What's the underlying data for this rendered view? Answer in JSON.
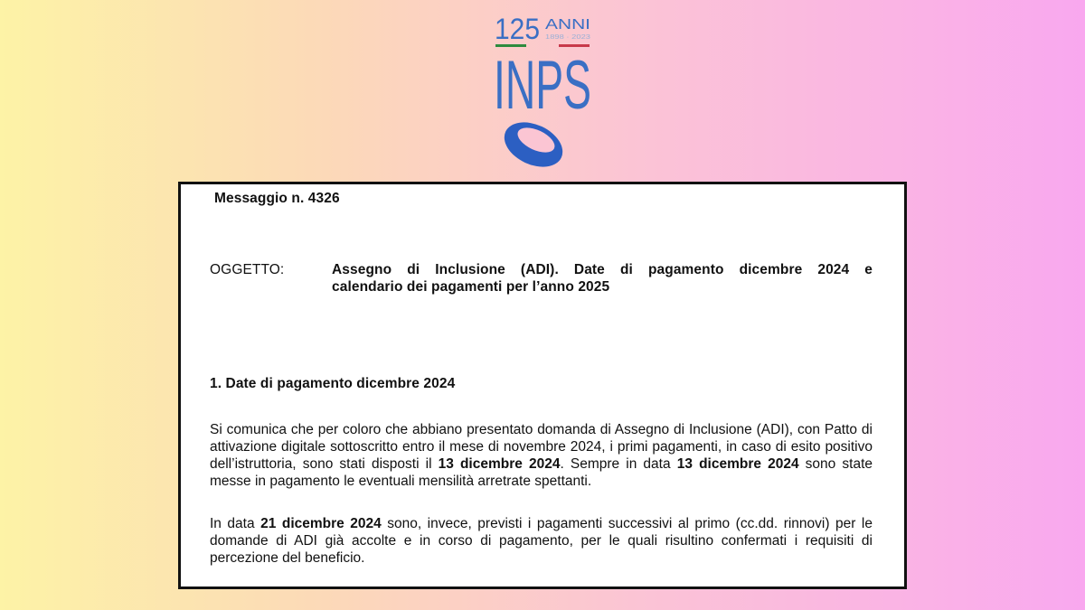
{
  "logo": {
    "number": "125",
    "anni": "ANNI",
    "years": "1898 · 2023",
    "brand": "INPS",
    "brand_color": "#3a6fc4"
  },
  "document": {
    "message": "Messaggio n. 4326",
    "subject_label": "OGGETTO:",
    "subject_line1": "Assegno di Inclusione (ADI). Date di pagamento dicembre 2024 e",
    "subject_line2": "calendario dei pagamenti per l’anno 2025",
    "section_title": "1. Date di pagamento dicembre 2024",
    "paragraph1": [
      {
        "text": "Si comunica che per coloro che abbiano presentato domanda di Assegno di Inclusione (ADI), con Patto di attivazione digitale sottoscritto entro il mese di novembre 2024, i primi pagamenti, in caso di esito positivo dell’istruttoria, sono stati disposti il ",
        "bold": false
      },
      {
        "text": "13 dicembre 2024",
        "bold": true
      },
      {
        "text": ". Sempre in data ",
        "bold": false
      },
      {
        "text": "13 dicembre 2024",
        "bold": true
      },
      {
        "text": " sono state messe in pagamento le eventuali mensilità arretrate spettanti.",
        "bold": false
      }
    ],
    "paragraph2": [
      {
        "text": "In data ",
        "bold": false
      },
      {
        "text": "21 dicembre 2024",
        "bold": true
      },
      {
        "text": " sono, invece, previsti i pagamenti successivi al primo (cc.dd. rinnovi) per le domande di ADI già accolte e in corso di pagamento, per le quali risultino confermati i requisiti di percezione del beneficio.",
        "bold": false
      }
    ]
  }
}
